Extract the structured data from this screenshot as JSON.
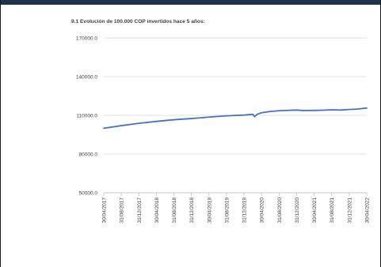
{
  "chart_data": {
    "type": "line",
    "title": "9.1 Evolución de 100.000 COP invertidos hace 5 años:",
    "xlabel": "",
    "ylabel": "",
    "ylim": [
      50000,
      170000
    ],
    "yticks": [
      "50000.0",
      "80000.0",
      "110000.0",
      "140000.0",
      "170000.0"
    ],
    "ytick_values": [
      50000,
      80000,
      110000,
      140000,
      170000
    ],
    "grid": true,
    "legend": "none",
    "xticks": [
      "30/04/2017",
      "31/08/2017",
      "31/12/2017",
      "30/04/2018",
      "31/08/2018",
      "31/12/2018",
      "30/04/2019",
      "31/08/2019",
      "31/12/2019",
      "30/04/2020",
      "31/08/2020",
      "31/12/2020",
      "30/04/2021",
      "31/08/2021",
      "31/12/2021",
      "30/04/2022"
    ],
    "series": [
      {
        "color": "#4472c4",
        "x": [
          0,
          1,
          2,
          3,
          4,
          5,
          6,
          7,
          8,
          8.5,
          8.6,
          8.75,
          9,
          9.5,
          10,
          11,
          11.4,
          11.6,
          12,
          12.5,
          13,
          13.5,
          14,
          14.5,
          15
        ],
        "y": [
          100000,
          102000,
          103800,
          105300,
          106600,
          107500,
          108600,
          109600,
          110200,
          110800,
          109000,
          110800,
          112000,
          113000,
          113600,
          114100,
          113700,
          113800,
          113800,
          114000,
          114300,
          114100,
          114500,
          114900,
          115700
        ]
      }
    ]
  }
}
